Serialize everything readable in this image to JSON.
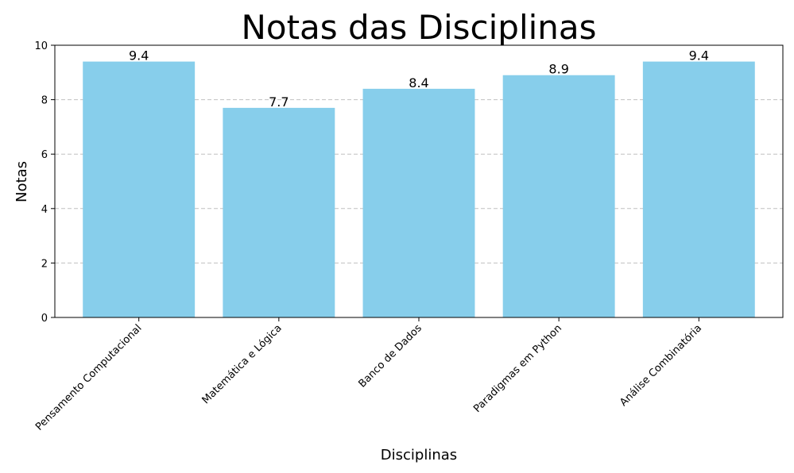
{
  "chart_data": {
    "type": "bar",
    "title": "Notas das Disciplinas",
    "xlabel": "Disciplinas",
    "ylabel": "Notas",
    "categories": [
      "Pensamento Computacional",
      "Matemática e Lógica",
      "Banco de Dados",
      "Paradigmas em Python",
      "Análise Combinatória"
    ],
    "values": [
      9.4,
      7.7,
      8.4,
      8.9,
      9.4
    ],
    "data_labels": [
      "9.4",
      "7.7",
      "8.4",
      "8.9",
      "9.4"
    ],
    "ylim": [
      0,
      10
    ],
    "yticks": [
      0,
      2,
      4,
      6,
      8,
      10
    ],
    "grid": "y-dashed",
    "bar_color": "#87CEEB",
    "grid_color": "#c0c0c0"
  }
}
